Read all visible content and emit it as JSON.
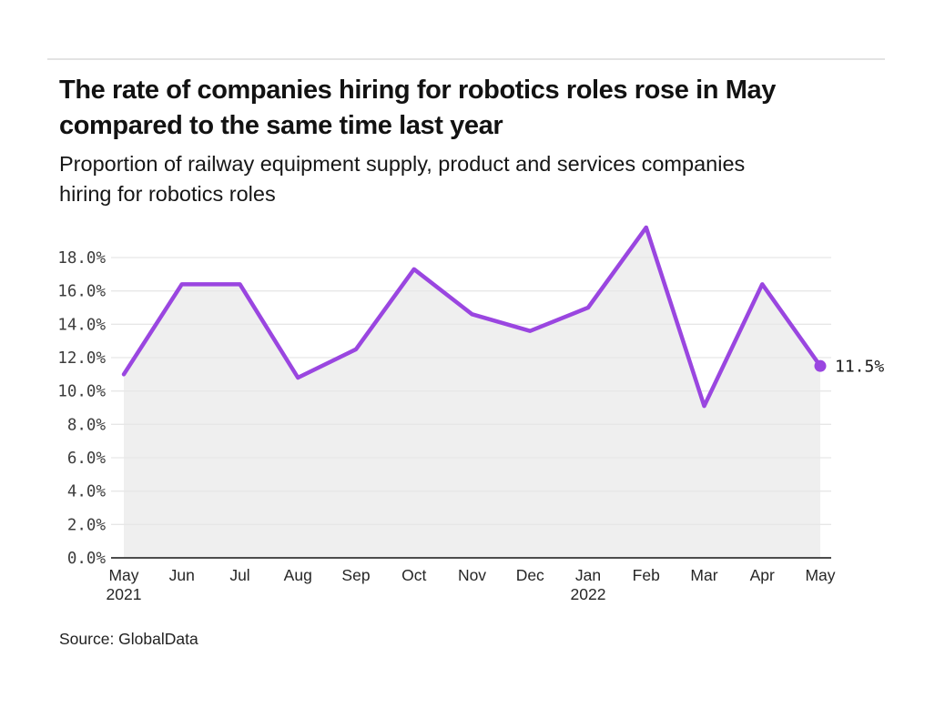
{
  "header": {
    "title": "The rate of companies hiring for robotics roles rose in May\ncompared to the same time last year",
    "subtitle": "Proportion of railway equipment supply, product and services companies\nhiring for robotics roles"
  },
  "footer": {
    "source": "Source: GlobalData"
  },
  "chart_data": {
    "type": "area",
    "title": "Proportion of railway equipment supply, product and services companies hiring for robotics roles",
    "x": [
      {
        "label": "May",
        "year": "2021"
      },
      {
        "label": "Jun"
      },
      {
        "label": "Jul"
      },
      {
        "label": "Aug"
      },
      {
        "label": "Sep"
      },
      {
        "label": "Oct"
      },
      {
        "label": "Nov"
      },
      {
        "label": "Dec"
      },
      {
        "label": "Jan",
        "year": "2022"
      },
      {
        "label": "Feb"
      },
      {
        "label": "Mar"
      },
      {
        "label": "Apr"
      },
      {
        "label": "May"
      }
    ],
    "values": [
      11.0,
      16.4,
      16.4,
      10.8,
      12.5,
      17.3,
      14.6,
      13.6,
      15.0,
      19.8,
      9.1,
      16.4,
      11.5
    ],
    "end_label": "11.5%",
    "y_ticks": [
      {
        "value": 0,
        "label": "0.0%"
      },
      {
        "value": 2,
        "label": "2.0%"
      },
      {
        "value": 4,
        "label": "4.0%"
      },
      {
        "value": 6,
        "label": "6.0%"
      },
      {
        "value": 8,
        "label": "8.0%"
      },
      {
        "value": 10,
        "label": "10.0%"
      },
      {
        "value": 12,
        "label": "12.0%"
      },
      {
        "value": 14,
        "label": "14.0%"
      },
      {
        "value": 16,
        "label": "16.0%"
      },
      {
        "value": 18,
        "label": "18.0%"
      }
    ],
    "ylim": [
      0,
      18
    ],
    "grid": true,
    "legend": "none",
    "colors": {
      "line": "#9A46E0",
      "area": "#EFEFEF",
      "grid": "#E7E7E7",
      "axis": "#4D4D4D",
      "tick_text": "#3D3D3D",
      "label_text": "#1A1A1A"
    }
  }
}
